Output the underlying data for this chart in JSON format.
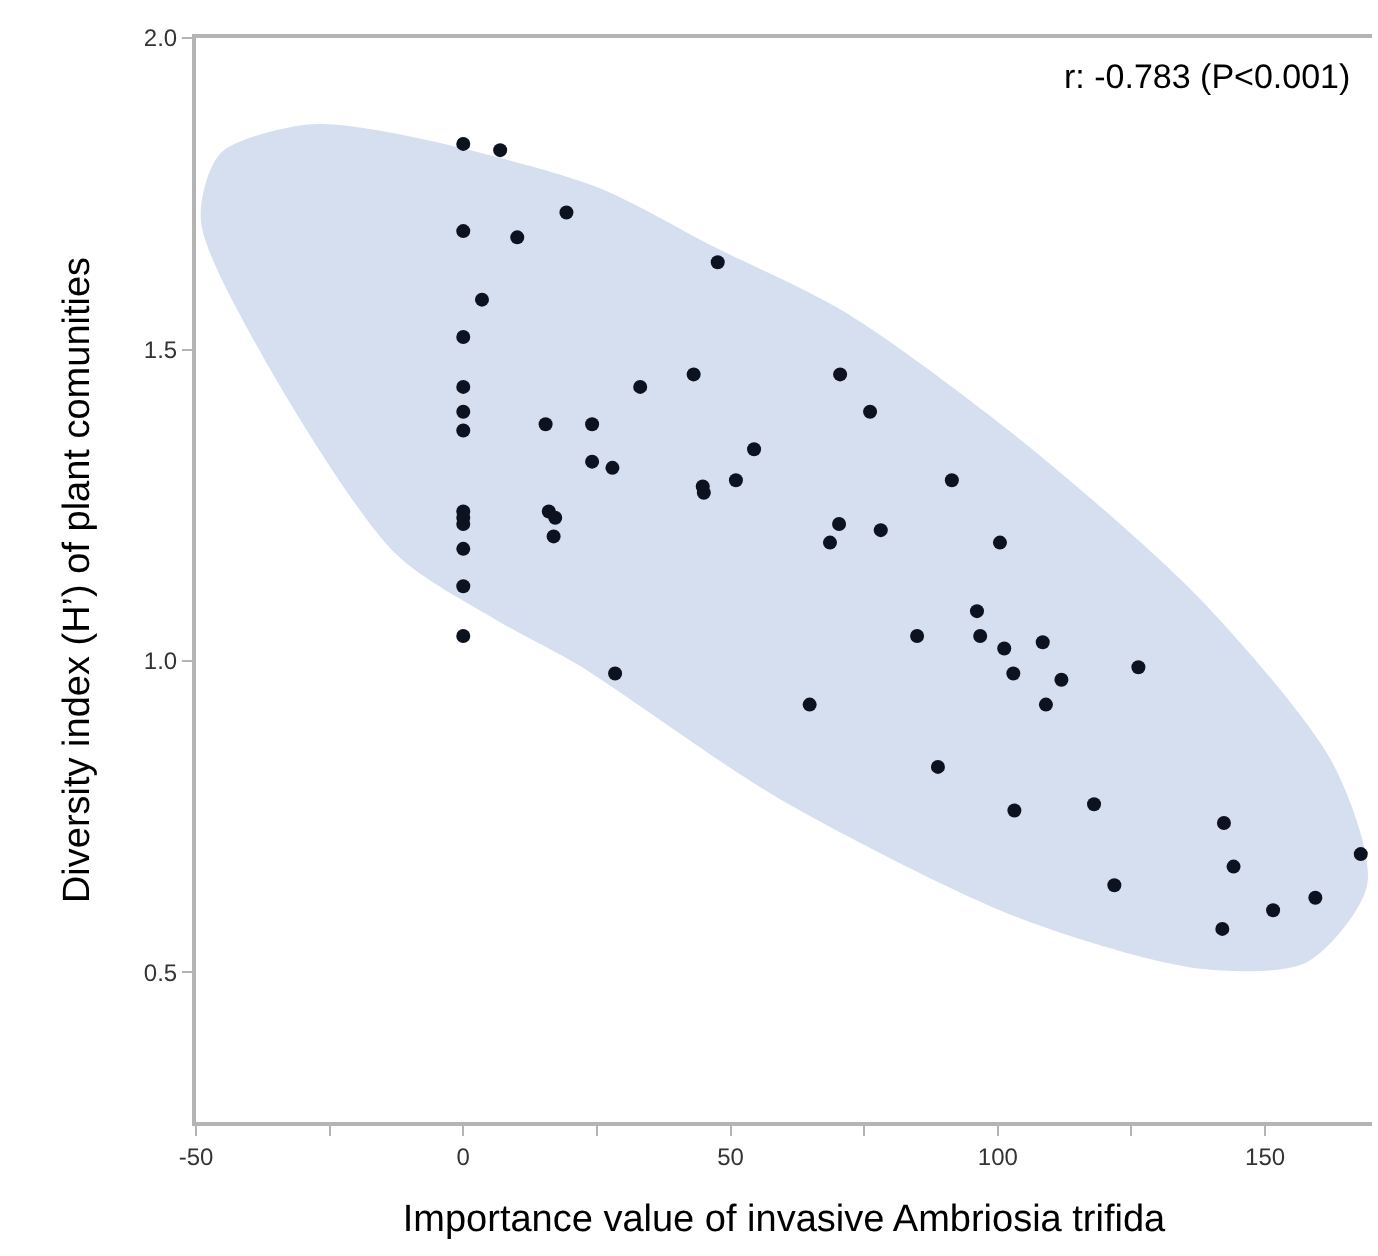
{
  "chart_data": {
    "type": "scatter",
    "xlabel": "Importance value of invasive Ambriosia trifida",
    "ylabel": "Diversity index (H’) of plant comunities",
    "annotations": [
      "r: -0.783 (P<0.001)"
    ],
    "xlim": [
      -50,
      170
    ],
    "xticks": [
      -50,
      {
        "value": -25,
        "label": null
      },
      0,
      {
        "value": 25,
        "label": null
      },
      50,
      {
        "value": 75,
        "label": null
      },
      100,
      {
        "value": 125,
        "label": null
      },
      150
    ],
    "ylim": [
      0.26,
      2.0
    ],
    "yticks": [
      {
        "value": 0.5,
        "label": "0.5"
      },
      {
        "value": 1.0,
        "label": "1.0"
      },
      {
        "value": 1.5,
        "label": "1.5"
      },
      {
        "value": 2.0,
        "label": "2.0"
      }
    ],
    "grid": false,
    "marker": "circle",
    "series": [
      {
        "type": "area",
        "marker": "none",
        "color": "#d6dff0",
        "x": [
          -49.1,
          -45.4,
          -29.1,
          -12.9,
          24.6,
          46.6,
          71.6,
          104.1,
          137.9,
          162.9,
          169.1,
          157.9,
          137.9,
          104.1,
          59.1,
          21.6,
          5.9,
          -12.9,
          -37.9,
          -49.1
        ],
        "values": [
          1.708,
          1.815,
          1.861,
          1.847,
          1.762,
          1.666,
          1.559,
          1.356,
          1.099,
          0.832,
          0.64,
          0.517,
          0.506,
          0.587,
          0.779,
          0.993,
          1.067,
          1.174,
          1.495,
          1.708
        ]
      },
      {
        "color": "#0d1220",
        "x": [
          0,
          6.9,
          19.3,
          0,
          10.1,
          3.5,
          0,
          0,
          0,
          0,
          15.4,
          24.1,
          24.1,
          0,
          0,
          0,
          16.0,
          17.2,
          16.9,
          0,
          0,
          0,
          47.6,
          33.1,
          43.1,
          27.9,
          44.8,
          45.0,
          51.0,
          54.4,
          70.5,
          76.1,
          91.4,
          70.3,
          68.6,
          78.1,
          100.4,
          96.1,
          84.9,
          96.7,
          101.2,
          102.9,
          28.4,
          64.8,
          88.8,
          103.1,
          108.4,
          111.9,
          109.0,
          126.3,
          118.0,
          121.8,
          142.3,
          144.1,
          167.9,
          159.4,
          151.5,
          142.0
        ],
        "values": [
          1.83,
          1.82,
          1.72,
          1.69,
          1.68,
          1.58,
          1.52,
          1.44,
          1.4,
          1.37,
          1.38,
          1.38,
          1.32,
          1.24,
          1.23,
          1.22,
          1.24,
          1.23,
          1.2,
          1.18,
          1.12,
          1.04,
          1.64,
          1.44,
          1.46,
          1.31,
          1.28,
          1.27,
          1.29,
          1.34,
          1.46,
          1.4,
          1.29,
          1.22,
          1.19,
          1.21,
          1.19,
          1.08,
          1.04,
          1.04,
          1.02,
          0.98,
          0.98,
          0.93,
          0.83,
          0.76,
          1.03,
          0.97,
          0.93,
          0.99,
          0.77,
          0.64,
          0.74,
          0.67,
          0.69,
          0.62,
          0.6,
          0.57
        ]
      }
    ]
  }
}
